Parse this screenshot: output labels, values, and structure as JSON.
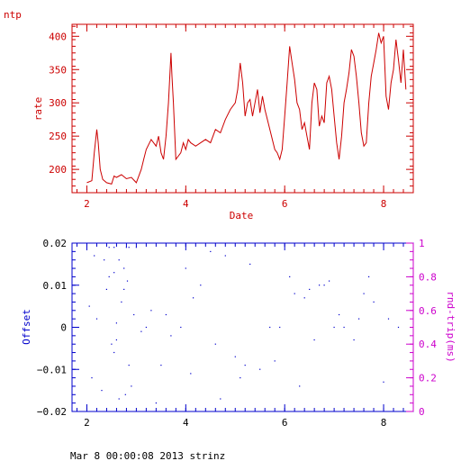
{
  "chart_data": [
    {
      "type": "line",
      "title": "ntp",
      "xlabel": "Date",
      "ylabel": "rate",
      "xlim": [
        1.7,
        8.6
      ],
      "ylim": [
        165,
        418
      ],
      "xticks": [
        2,
        4,
        6,
        8
      ],
      "yticks": [
        200,
        250,
        300,
        350,
        400
      ],
      "colors": {
        "frame": "#cc0000",
        "line": "#cc0000"
      },
      "series": [
        {
          "x": [
            2.0,
            2.1,
            2.15,
            2.2,
            2.23,
            2.27,
            2.32,
            2.4,
            2.5,
            2.55,
            2.6,
            2.7,
            2.8,
            2.9,
            3.0,
            3.1,
            3.15,
            3.2,
            3.3,
            3.4,
            3.45,
            3.5,
            3.55,
            3.6,
            3.65,
            3.7,
            3.72,
            3.75,
            3.8,
            3.9,
            3.95,
            4.0,
            4.05,
            4.1,
            4.2,
            4.3,
            4.4,
            4.5,
            4.6,
            4.7,
            4.8,
            4.9,
            5.0,
            5.05,
            5.1,
            5.15,
            5.2,
            5.25,
            5.3,
            5.35,
            5.4,
            5.45,
            5.5,
            5.55,
            5.6,
            5.7,
            5.8,
            5.85,
            5.9,
            5.95,
            6.0,
            6.05,
            6.1,
            6.15,
            6.2,
            6.25,
            6.3,
            6.35,
            6.4,
            6.45,
            6.5,
            6.55,
            6.6,
            6.65,
            6.7,
            6.75,
            6.8,
            6.85,
            6.9,
            6.95,
            7.0,
            7.05,
            7.1,
            7.15,
            7.2,
            7.25,
            7.3,
            7.35,
            7.4,
            7.45,
            7.5,
            7.55,
            7.6,
            7.65,
            7.7,
            7.75,
            7.8,
            7.85,
            7.9,
            7.95,
            8.0,
            8.05,
            8.1,
            8.15,
            8.2,
            8.25,
            8.3,
            8.35,
            8.4,
            8.45
          ],
          "y": [
            180,
            183,
            225,
            260,
            240,
            200,
            185,
            180,
            178,
            190,
            188,
            192,
            186,
            188,
            180,
            200,
            215,
            230,
            245,
            235,
            250,
            225,
            215,
            250,
            300,
            375,
            340,
            300,
            215,
            225,
            240,
            230,
            245,
            240,
            235,
            240,
            245,
            240,
            260,
            255,
            275,
            290,
            300,
            320,
            360,
            330,
            280,
            300,
            305,
            280,
            300,
            320,
            285,
            310,
            290,
            260,
            230,
            225,
            215,
            230,
            280,
            330,
            385,
            360,
            335,
            300,
            290,
            260,
            270,
            250,
            230,
            300,
            330,
            320,
            265,
            280,
            270,
            330,
            340,
            320,
            280,
            240,
            215,
            250,
            300,
            320,
            345,
            380,
            370,
            340,
            300,
            255,
            235,
            240,
            300,
            340,
            360,
            380,
            405,
            390,
            400,
            310,
            290,
            330,
            350,
            395,
            365,
            330,
            380,
            320
          ]
        }
      ]
    },
    {
      "type": "scatter",
      "xlabel": "",
      "ylabel": "Offset",
      "y2label": "rnd-trip(ms)",
      "xlim": [
        1.7,
        8.6
      ],
      "ylim": [
        -0.02,
        0.02
      ],
      "y2lim": [
        0,
        1
      ],
      "xticks": [
        2,
        4,
        6,
        8
      ],
      "yticks": [
        -0.02,
        -0.01,
        0,
        0.01,
        0.02
      ],
      "ytick_labels": [
        "−0.02",
        "−0.01",
        "0",
        "0.01",
        "0.02"
      ],
      "y2ticks": [
        0,
        0.2,
        0.4,
        0.6,
        0.8,
        1
      ],
      "y2tick_labels": [
        "0",
        "0.2",
        "0.4",
        "0.6",
        "0.8",
        "1"
      ],
      "colors": {
        "frame": "#0000cc",
        "points": "#0000cc",
        "right_axis": "#cc00cc"
      },
      "series": [
        {
          "x": [
            2.05,
            2.1,
            2.15,
            2.2,
            2.3,
            2.4,
            2.45,
            2.5,
            2.55,
            2.6,
            2.65,
            2.7,
            2.75,
            2.8,
            2.85,
            2.9,
            3.4,
            3.5,
            3.6,
            3.7,
            4.0,
            4.1,
            4.5,
            4.8,
            5.0,
            5.3,
            5.5,
            5.8,
            6.1,
            6.3,
            6.5,
            6.6,
            6.8,
            6.9,
            7.2,
            7.4,
            7.6,
            7.8,
            8.0,
            2.35,
            2.45,
            2.55,
            2.65,
            2.75,
            2.85,
            3.0,
            3.2,
            3.9,
            4.3,
            4.7,
            5.2,
            5.7,
            6.2,
            6.4,
            7.0,
            7.1,
            7.7,
            8.1,
            2.55,
            2.6,
            2.78,
            2.82,
            2.95,
            3.1,
            3.3,
            4.15,
            4.6,
            5.1,
            5.9,
            6.7,
            7.5,
            8.3
          ],
          "y": [
            0.005,
            -0.012,
            0.017,
            0.002,
            -0.015,
            0.009,
            0.019,
            -0.004,
            0.013,
            0.001,
            -0.017,
            0.006,
            0.014,
            0.019,
            -0.009,
            -0.014,
            -0.018,
            -0.009,
            0.003,
            -0.002,
            0.014,
            -0.011,
            0.018,
            0.017,
            -0.007,
            0.015,
            -0.01,
            -0.008,
            0.012,
            -0.014,
            0.009,
            -0.003,
            0.01,
            0.011,
            0.0,
            -0.003,
            0.008,
            0.006,
            -0.013,
            0.016,
            0.012,
            -0.006,
            0.016,
            0.009,
            0.019,
            0.019,
            0.0,
            0.0,
            0.01,
            -0.017,
            -0.009,
            0.0,
            0.008,
            0.007,
            0.0,
            0.003,
            0.012,
            0.002,
            0.019,
            -0.003,
            -0.016,
            0.011,
            0.003,
            -0.001,
            0.004,
            0.007,
            -0.004,
            -0.012,
            0.0,
            0.01,
            0.002,
            0.0
          ]
        }
      ]
    }
  ],
  "footer": {
    "timestamp": "Mar  8 00:00:08 2013 strinz"
  }
}
